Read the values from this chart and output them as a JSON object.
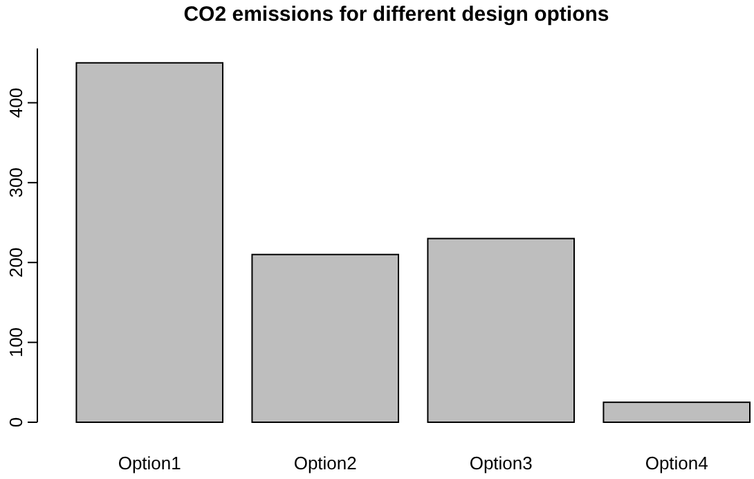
{
  "chart_data": {
    "type": "bar",
    "title": "CO2 emissions for different design options",
    "categories": [
      "Option1",
      "Option2",
      "Option3",
      "Option4"
    ],
    "values": [
      450,
      210,
      230,
      25
    ],
    "color": "#bebebe",
    "ylim": [
      0,
      468
    ],
    "yticks": [
      0,
      100,
      200,
      300,
      400
    ],
    "grid": false
  }
}
